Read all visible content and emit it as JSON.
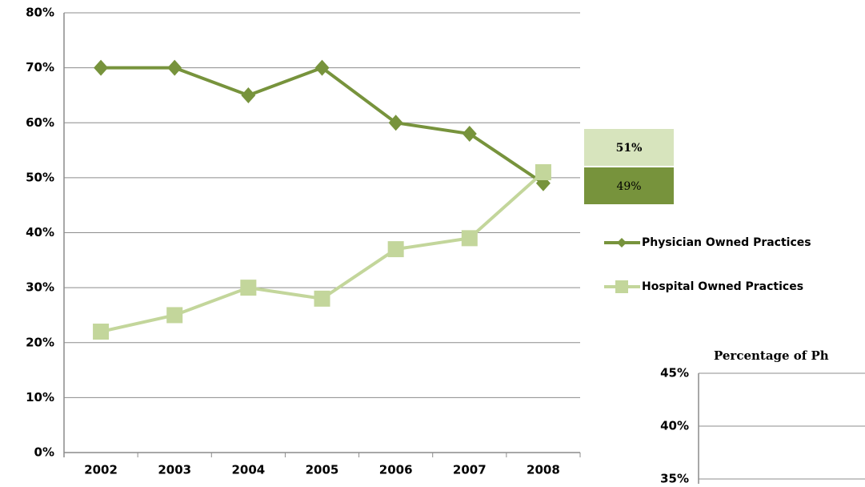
{
  "chart_data": [
    {
      "type": "line",
      "categories": [
        "2002",
        "2003",
        "2004",
        "2005",
        "2006",
        "2007",
        "2008"
      ],
      "series": [
        {
          "name": "Physician Owned Practices",
          "color": "#77933c",
          "marker": "diamond",
          "values": [
            70,
            70,
            65,
            70,
            60,
            58,
            49
          ],
          "value_labels": [
            null,
            null,
            null,
            null,
            null,
            null,
            "49%"
          ]
        },
        {
          "name": "Hospital Owned Practices",
          "color": "#c3d69b",
          "marker": "square",
          "values": [
            22,
            25,
            30,
            28,
            37,
            39,
            51
          ],
          "value_labels": [
            null,
            null,
            null,
            null,
            null,
            null,
            "51%"
          ]
        }
      ],
      "ylim": [
        0,
        80
      ],
      "yticks": [
        {
          "value": 0,
          "label": "0%"
        },
        {
          "value": 10,
          "label": "10%"
        },
        {
          "value": 20,
          "label": "20%"
        },
        {
          "value": 30,
          "label": "30%"
        },
        {
          "value": 40,
          "label": "40%"
        },
        {
          "value": 50,
          "label": "50%"
        },
        {
          "value": 60,
          "label": "60%"
        },
        {
          "value": 70,
          "label": "70%"
        },
        {
          "value": 80,
          "label": "80%"
        }
      ],
      "grid": true,
      "legend": "right"
    },
    {
      "type": "bar",
      "title": "Percentage of Ph",
      "ylim": [
        35,
        45
      ],
      "yticks": [
        {
          "value": 35,
          "label": "35%"
        },
        {
          "value": 40,
          "label": "40%"
        },
        {
          "value": 45,
          "label": "45%"
        }
      ],
      "grid": true
    }
  ]
}
